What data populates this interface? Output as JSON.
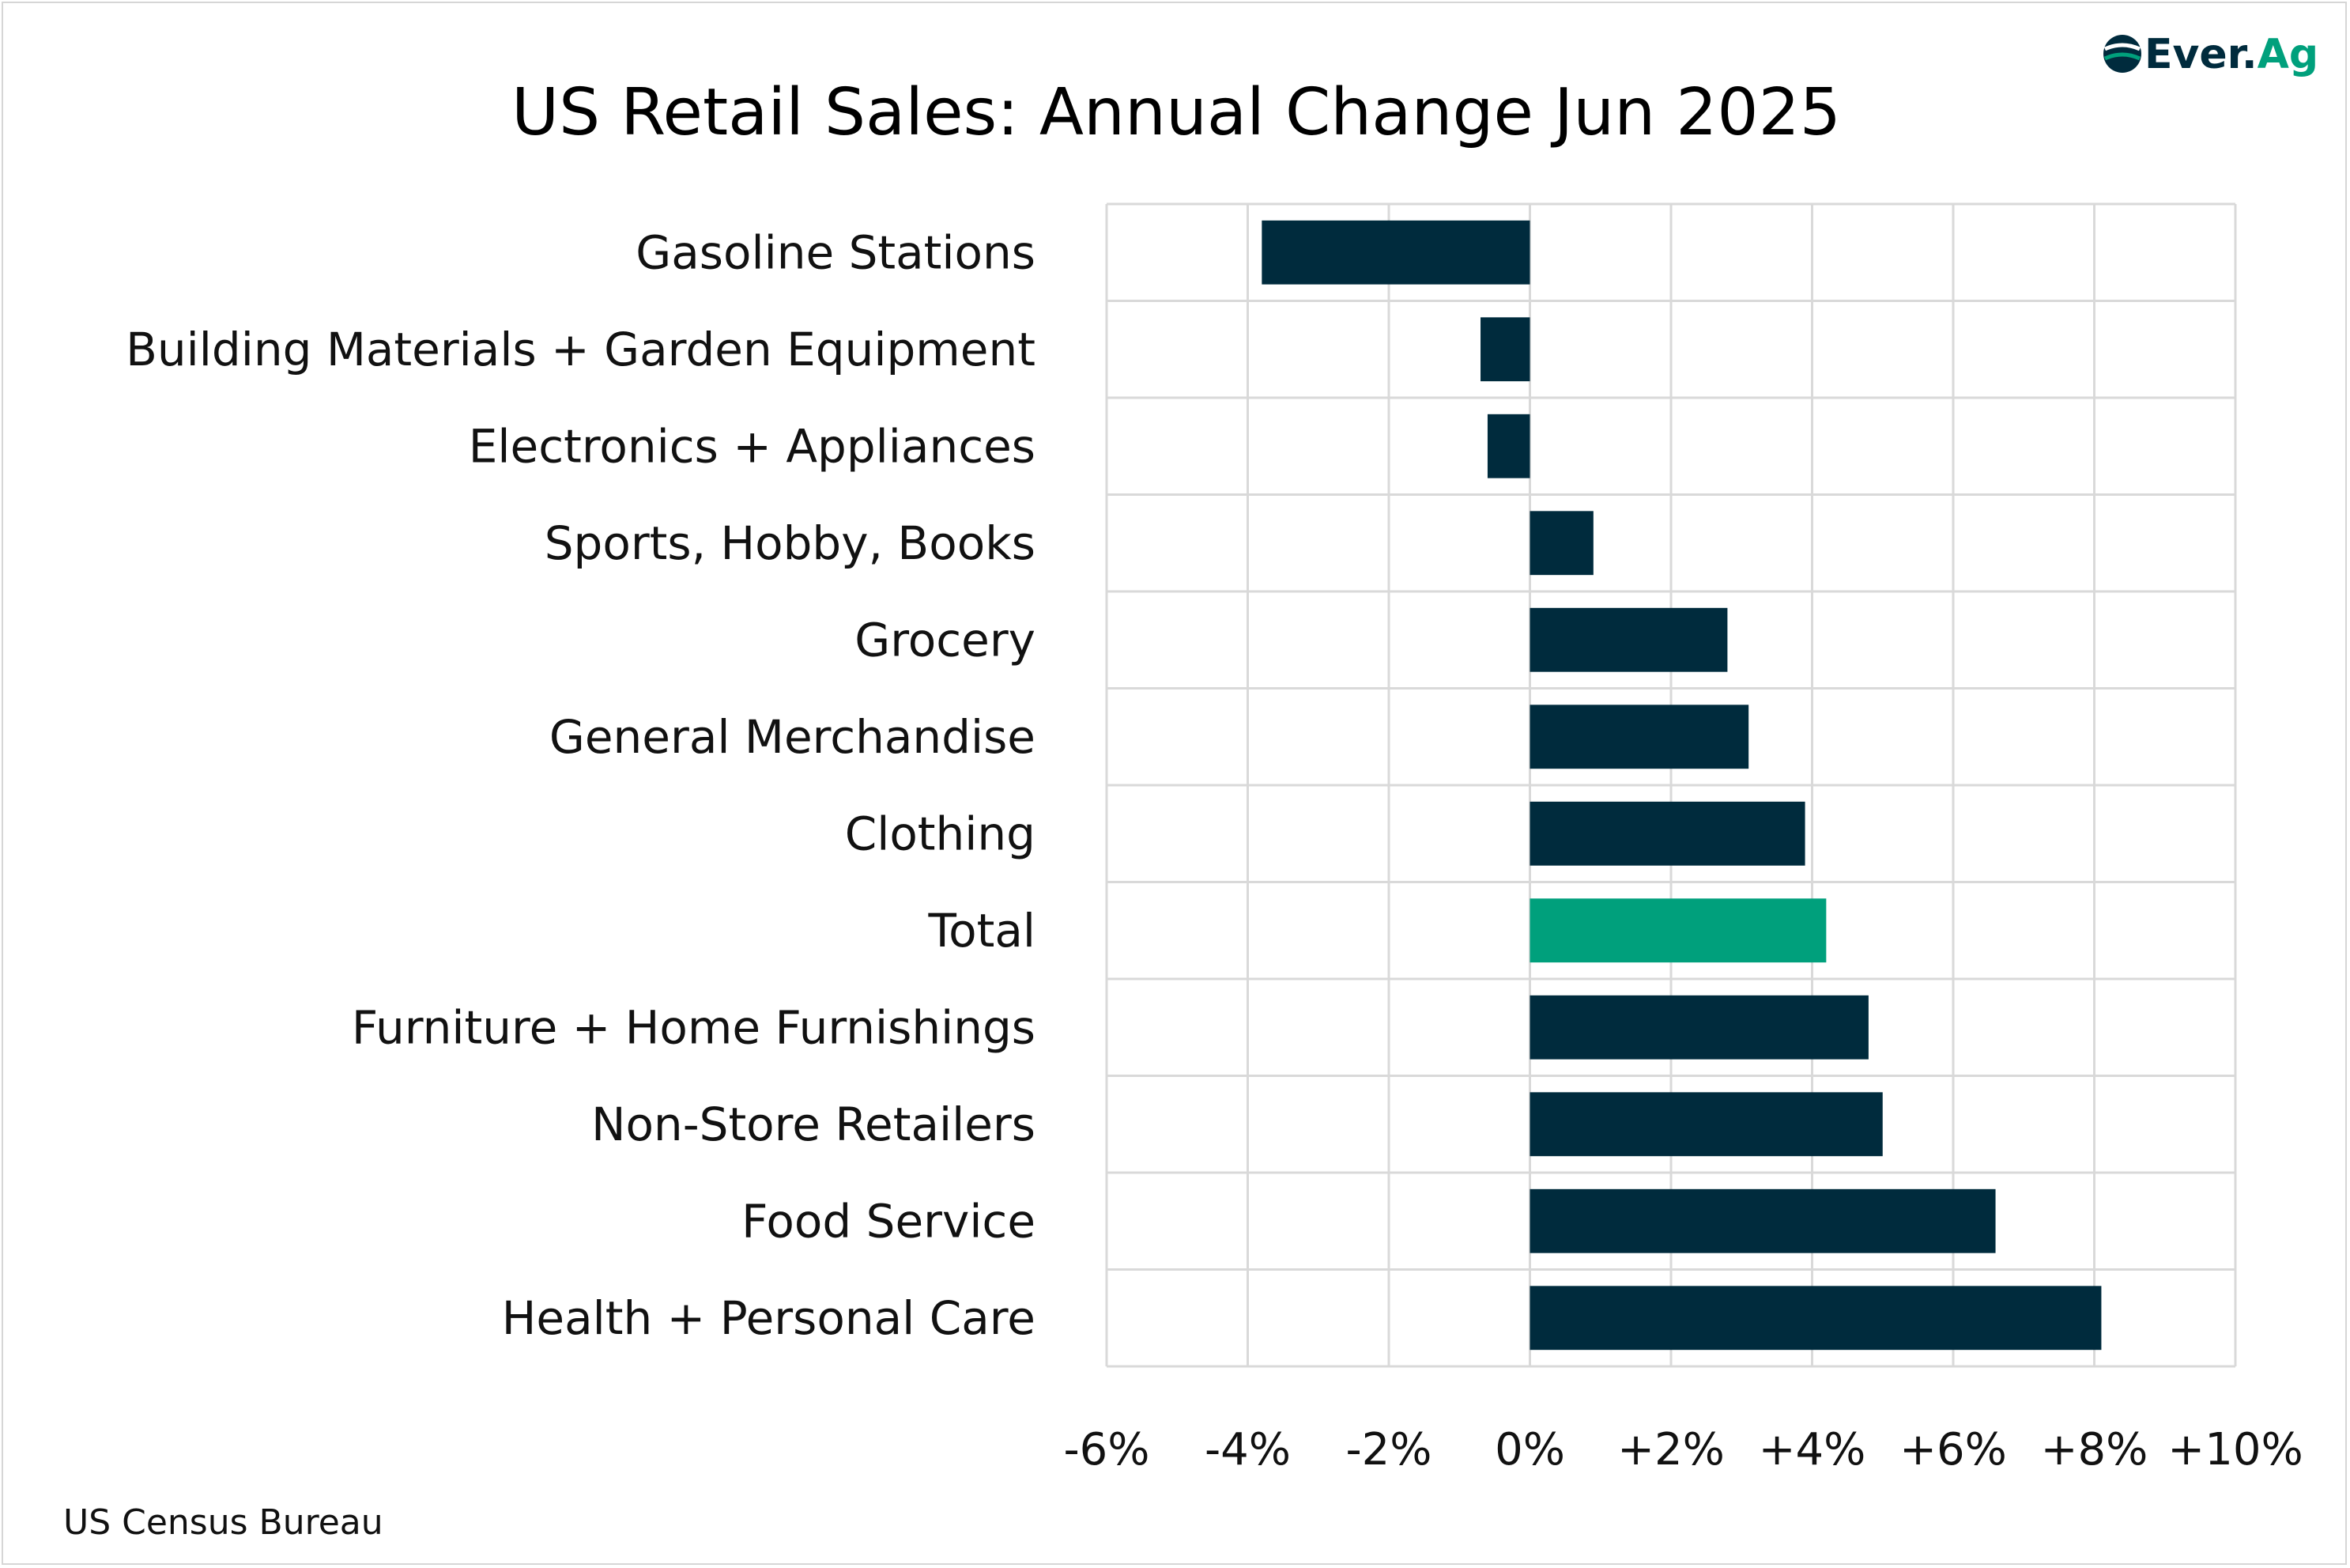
{
  "chart_data": {
    "type": "bar",
    "orientation": "horizontal",
    "title": "US Retail Sales: Annual Change Jun 2025",
    "categories": [
      "Gasoline Stations",
      "Building Materials + Garden Equipment",
      "Electronics + Appliances",
      "Sports, Hobby, Books",
      "Grocery",
      "General Merchandise",
      "Clothing",
      "Total",
      "Furniture + Home Furnishings",
      "Non-Store Retailers",
      "Food Service",
      "Health + Personal Care"
    ],
    "values": [
      -3.8,
      -0.7,
      -0.6,
      0.9,
      2.8,
      3.1,
      3.9,
      4.2,
      4.8,
      5.0,
      6.6,
      8.1
    ],
    "highlight_category": "Total",
    "xlim": [
      -6,
      10
    ],
    "xticks": [
      "-6%",
      "-4%",
      "-2%",
      "0%",
      "+2%",
      "+4%",
      "+6%",
      "+8%",
      "+10%"
    ],
    "xtick_values": [
      -6,
      -4,
      -2,
      0,
      2,
      4,
      6,
      8,
      10
    ],
    "grid": true,
    "colors": {
      "bar": "#002b3d",
      "highlight": "#00a07c",
      "grid": "#d9d9d9"
    }
  },
  "source": "US Census Bureau",
  "logo": {
    "text_main": "Ever.",
    "text_accent": "Ag",
    "icon": "everag-logo-icon"
  }
}
